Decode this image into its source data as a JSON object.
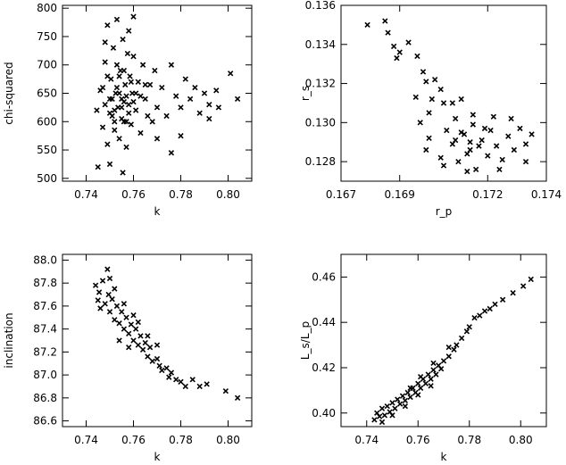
{
  "chart_data": [
    {
      "type": "scatter",
      "xlabel": "k",
      "ylabel": "chi-squared",
      "xlim": [
        0.73,
        0.81
      ],
      "ylim": [
        495,
        805
      ],
      "xticks": [
        0.74,
        0.76,
        0.78,
        0.8
      ],
      "xtick_labels": [
        "0.74",
        "0.76",
        "0.78",
        "0.80"
      ],
      "yticks": [
        500,
        550,
        600,
        650,
        700,
        750,
        800
      ],
      "ytick_labels": [
        "500",
        "550",
        "600",
        "650",
        "700",
        "750",
        "800"
      ],
      "marker": "x",
      "color": "#000000",
      "points": [
        [
          0.7445,
          620
        ],
        [
          0.746,
          655
        ],
        [
          0.747,
          590
        ],
        [
          0.748,
          705
        ],
        [
          0.749,
          560
        ],
        [
          0.75,
          640
        ],
        [
          0.7505,
          675
        ],
        [
          0.751,
          610
        ],
        [
          0.7515,
          730
        ],
        [
          0.752,
          585
        ],
        [
          0.7525,
          650
        ],
        [
          0.753,
          700
        ],
        [
          0.7535,
          625
        ],
        [
          0.754,
          570
        ],
        [
          0.7545,
          690
        ],
        [
          0.755,
          640
        ],
        [
          0.7555,
          745
        ],
        [
          0.756,
          600
        ],
        [
          0.7565,
          665
        ],
        [
          0.757,
          555
        ],
        [
          0.7575,
          720
        ],
        [
          0.758,
          630
        ],
        [
          0.7585,
          680
        ],
        [
          0.759,
          595
        ],
        [
          0.7595,
          650
        ],
        [
          0.76,
          715
        ],
        [
          0.761,
          620
        ],
        [
          0.762,
          670
        ],
        [
          0.763,
          580
        ],
        [
          0.764,
          700
        ],
        [
          0.765,
          640
        ],
        [
          0.766,
          610
        ],
        [
          0.767,
          665
        ],
        [
          0.768,
          600
        ],
        [
          0.769,
          690
        ],
        [
          0.77,
          625
        ],
        [
          0.772,
          660
        ],
        [
          0.774,
          610
        ],
        [
          0.776,
          700
        ],
        [
          0.778,
          645
        ],
        [
          0.78,
          625
        ],
        [
          0.782,
          675
        ],
        [
          0.784,
          640
        ],
        [
          0.786,
          660
        ],
        [
          0.788,
          615
        ],
        [
          0.79,
          650
        ],
        [
          0.792,
          630
        ],
        [
          0.795,
          655
        ],
        [
          0.801,
          685
        ],
        [
          0.804,
          640
        ],
        [
          0.745,
          520
        ],
        [
          0.75,
          525
        ],
        [
          0.7555,
          510
        ],
        [
          0.753,
          780
        ],
        [
          0.749,
          770
        ],
        [
          0.758,
          760
        ],
        [
          0.76,
          785
        ],
        [
          0.748,
          740
        ],
        [
          0.776,
          545
        ],
        [
          0.78,
          575
        ],
        [
          0.77,
          570
        ],
        [
          0.792,
          605
        ],
        [
          0.796,
          625
        ],
        [
          0.755,
          625
        ],
        [
          0.754,
          650
        ],
        [
          0.756,
          635
        ],
        [
          0.752,
          620
        ],
        [
          0.757,
          645
        ],
        [
          0.753,
          660
        ],
        [
          0.755,
          605
        ],
        [
          0.758,
          615
        ],
        [
          0.754,
          680
        ],
        [
          0.751,
          640
        ],
        [
          0.756,
          690
        ],
        [
          0.759,
          670
        ],
        [
          0.752,
          600
        ],
        [
          0.75,
          615
        ],
        [
          0.757,
          600
        ],
        [
          0.761,
          650
        ],
        [
          0.76,
          635
        ],
        [
          0.748,
          630
        ],
        [
          0.747,
          660
        ],
        [
          0.749,
          680
        ],
        [
          0.763,
          645
        ],
        [
          0.765,
          665
        ]
      ]
    },
    {
      "type": "scatter",
      "xlabel": "r_p",
      "ylabel": "r_s",
      "xlim": [
        0.167,
        0.174
      ],
      "ylim": [
        0.127,
        0.136
      ],
      "xticks": [
        0.167,
        0.169,
        0.172,
        0.174
      ],
      "xtick_labels": [
        "0.167",
        "0.169",
        "0.172",
        "0.174"
      ],
      "yticks": [
        0.128,
        0.13,
        0.132,
        0.134,
        0.136
      ],
      "ytick_labels": [
        "0.128",
        "0.130",
        "0.132",
        "0.134",
        "0.136"
      ],
      "marker": "x",
      "color": "#000000",
      "points": [
        [
          0.1679,
          0.135
        ],
        [
          0.1685,
          0.1352
        ],
        [
          0.1686,
          0.1346
        ],
        [
          0.1688,
          0.1339
        ],
        [
          0.169,
          0.1336
        ],
        [
          0.1689,
          0.1333
        ],
        [
          0.1693,
          0.1341
        ],
        [
          0.1696,
          0.1334
        ],
        [
          0.1698,
          0.1326
        ],
        [
          0.1699,
          0.1321
        ],
        [
          0.1702,
          0.1322
        ],
        [
          0.1704,
          0.1317
        ],
        [
          0.1701,
          0.1312
        ],
        [
          0.1705,
          0.131
        ],
        [
          0.1708,
          0.131
        ],
        [
          0.1711,
          0.1312
        ],
        [
          0.1697,
          0.13
        ],
        [
          0.1699,
          0.1286
        ],
        [
          0.17,
          0.1292
        ],
        [
          0.1704,
          0.1282
        ],
        [
          0.1706,
          0.1296
        ],
        [
          0.1708,
          0.1289
        ],
        [
          0.1709,
          0.1302
        ],
        [
          0.171,
          0.128
        ],
        [
          0.1712,
          0.1294
        ],
        [
          0.1714,
          0.1286
        ],
        [
          0.1715,
          0.1299
        ],
        [
          0.1716,
          0.1276
        ],
        [
          0.1718,
          0.1291
        ],
        [
          0.172,
          0.1283
        ],
        [
          0.1721,
          0.1296
        ],
        [
          0.1723,
          0.1288
        ],
        [
          0.1725,
          0.1281
        ],
        [
          0.1727,
          0.1293
        ],
        [
          0.1729,
          0.1286
        ],
        [
          0.1731,
          0.1297
        ],
        [
          0.1733,
          0.1289
        ],
        [
          0.1735,
          0.1294
        ],
        [
          0.1705,
          0.1278
        ],
        [
          0.1713,
          0.1275
        ],
        [
          0.1724,
          0.1276
        ],
        [
          0.1733,
          0.128
        ],
        [
          0.17,
          0.1305
        ],
        [
          0.1715,
          0.1304
        ],
        [
          0.1722,
          0.1303
        ],
        [
          0.1728,
          0.1302
        ],
        [
          0.16955,
          0.1313
        ],
        [
          0.1714,
          0.129
        ],
        [
          0.1711,
          0.1295
        ],
        [
          0.1717,
          0.1288
        ],
        [
          0.1709,
          0.1291
        ],
        [
          0.1719,
          0.1297
        ],
        [
          0.1713,
          0.1284
        ]
      ]
    },
    {
      "type": "scatter",
      "xlabel": "k",
      "ylabel": "inclination",
      "xlim": [
        0.73,
        0.81
      ],
      "ylim": [
        86.55,
        88.05
      ],
      "xticks": [
        0.74,
        0.76,
        0.78,
        0.8
      ],
      "xtick_labels": [
        "0.74",
        "0.76",
        "0.78",
        "0.80"
      ],
      "yticks": [
        86.6,
        86.8,
        87.0,
        87.2,
        87.4,
        87.6,
        87.8,
        88.0
      ],
      "ytick_labels": [
        "86.6",
        "86.8",
        "87.0",
        "87.2",
        "87.4",
        "87.6",
        "87.8",
        "88.0"
      ],
      "marker": "x",
      "color": "#000000",
      "points": [
        [
          0.744,
          87.78
        ],
        [
          0.745,
          87.65
        ],
        [
          0.7455,
          87.72
        ],
        [
          0.746,
          87.58
        ],
        [
          0.747,
          87.82
        ],
        [
          0.748,
          87.62
        ],
        [
          0.749,
          87.92
        ],
        [
          0.7495,
          87.7
        ],
        [
          0.75,
          87.55
        ],
        [
          0.751,
          87.66
        ],
        [
          0.752,
          87.48
        ],
        [
          0.753,
          87.6
        ],
        [
          0.754,
          87.45
        ],
        [
          0.755,
          87.55
        ],
        [
          0.756,
          87.4
        ],
        [
          0.757,
          87.5
        ],
        [
          0.758,
          87.36
        ],
        [
          0.759,
          87.44
        ],
        [
          0.76,
          87.3
        ],
        [
          0.761,
          87.4
        ],
        [
          0.762,
          87.26
        ],
        [
          0.763,
          87.34
        ],
        [
          0.764,
          87.22
        ],
        [
          0.765,
          87.28
        ],
        [
          0.766,
          87.16
        ],
        [
          0.767,
          87.24
        ],
        [
          0.768,
          87.12
        ],
        [
          0.77,
          87.14
        ],
        [
          0.771,
          87.08
        ],
        [
          0.772,
          87.04
        ],
        [
          0.774,
          87.06
        ],
        [
          0.775,
          86.98
        ],
        [
          0.776,
          87.02
        ],
        [
          0.778,
          86.96
        ],
        [
          0.78,
          86.94
        ],
        [
          0.782,
          86.9
        ],
        [
          0.785,
          86.96
        ],
        [
          0.788,
          86.9
        ],
        [
          0.791,
          86.92
        ],
        [
          0.799,
          86.86
        ],
        [
          0.804,
          86.8
        ],
        [
          0.752,
          87.75
        ],
        [
          0.756,
          87.62
        ],
        [
          0.76,
          87.52
        ],
        [
          0.758,
          87.24
        ],
        [
          0.754,
          87.3
        ],
        [
          0.762,
          87.46
        ],
        [
          0.766,
          87.34
        ],
        [
          0.77,
          87.26
        ],
        [
          0.75,
          87.84
        ]
      ]
    },
    {
      "type": "scatter",
      "xlabel": "k",
      "ylabel": "L_s/L_p",
      "xlim": [
        0.73,
        0.81
      ],
      "ylim": [
        0.394,
        0.47
      ],
      "xticks": [
        0.74,
        0.76,
        0.78,
        0.8
      ],
      "xtick_labels": [
        "0.74",
        "0.76",
        "0.78",
        "0.80"
      ],
      "yticks": [
        0.4,
        0.42,
        0.44,
        0.46
      ],
      "ytick_labels": [
        "0.40",
        "0.42",
        "0.44",
        "0.46"
      ],
      "marker": "x",
      "color": "#000000",
      "points": [
        [
          0.743,
          0.397
        ],
        [
          0.744,
          0.4
        ],
        [
          0.745,
          0.3985
        ],
        [
          0.746,
          0.402
        ],
        [
          0.747,
          0.399
        ],
        [
          0.748,
          0.403
        ],
        [
          0.749,
          0.4005
        ],
        [
          0.75,
          0.4045
        ],
        [
          0.751,
          0.402
        ],
        [
          0.752,
          0.406
        ],
        [
          0.753,
          0.404
        ],
        [
          0.754,
          0.4075
        ],
        [
          0.755,
          0.4055
        ],
        [
          0.756,
          0.409
        ],
        [
          0.757,
          0.407
        ],
        [
          0.758,
          0.411
        ],
        [
          0.759,
          0.409
        ],
        [
          0.76,
          0.413
        ],
        [
          0.761,
          0.411
        ],
        [
          0.762,
          0.415
        ],
        [
          0.763,
          0.413
        ],
        [
          0.764,
          0.417
        ],
        [
          0.765,
          0.415
        ],
        [
          0.766,
          0.419
        ],
        [
          0.767,
          0.417
        ],
        [
          0.768,
          0.421
        ],
        [
          0.769,
          0.4195
        ],
        [
          0.77,
          0.423
        ],
        [
          0.772,
          0.425
        ],
        [
          0.774,
          0.428
        ],
        [
          0.775,
          0.43
        ],
        [
          0.777,
          0.433
        ],
        [
          0.779,
          0.436
        ],
        [
          0.78,
          0.438
        ],
        [
          0.782,
          0.442
        ],
        [
          0.784,
          0.443
        ],
        [
          0.786,
          0.445
        ],
        [
          0.788,
          0.446
        ],
        [
          0.79,
          0.448
        ],
        [
          0.793,
          0.45
        ],
        [
          0.797,
          0.453
        ],
        [
          0.801,
          0.456
        ],
        [
          0.804,
          0.459
        ],
        [
          0.746,
          0.396
        ],
        [
          0.75,
          0.399
        ],
        [
          0.755,
          0.403
        ],
        [
          0.76,
          0.408
        ],
        [
          0.765,
          0.412
        ],
        [
          0.761,
          0.416
        ],
        [
          0.757,
          0.411
        ],
        [
          0.766,
          0.422
        ],
        [
          0.772,
          0.429
        ]
      ]
    }
  ]
}
